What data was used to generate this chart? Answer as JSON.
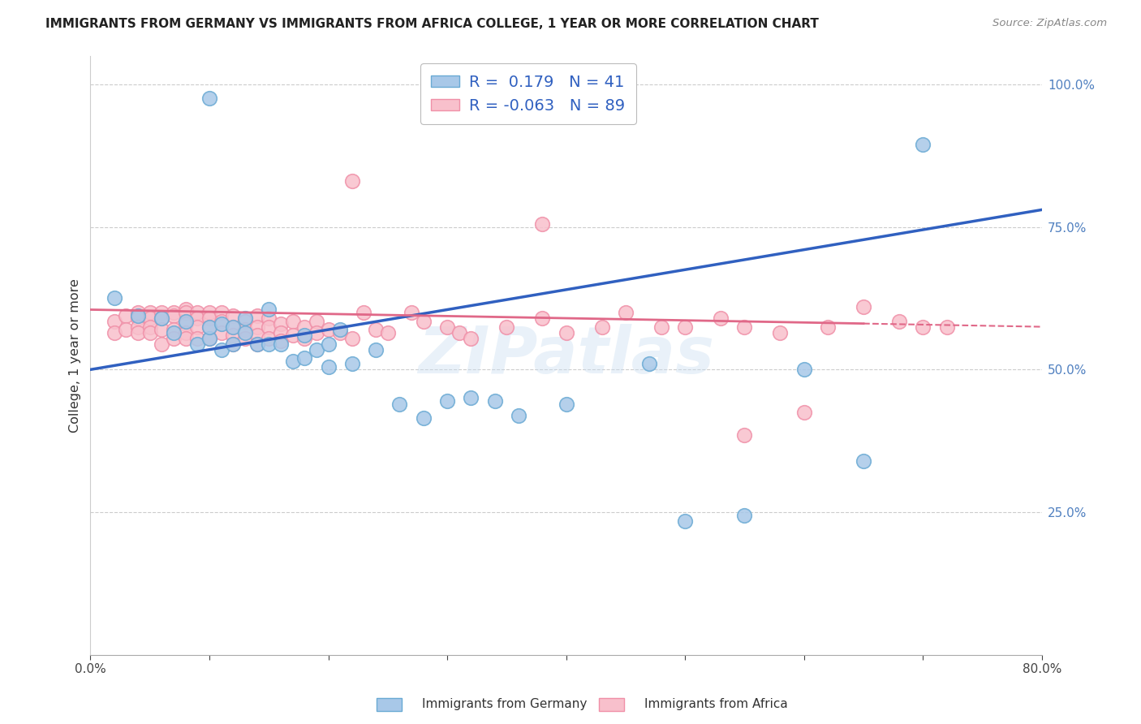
{
  "title": "IMMIGRANTS FROM GERMANY VS IMMIGRANTS FROM AFRICA COLLEGE, 1 YEAR OR MORE CORRELATION CHART",
  "source": "Source: ZipAtlas.com",
  "ylabel": "College, 1 year or more",
  "xlim": [
    0.0,
    0.8
  ],
  "ylim": [
    0.0,
    1.05
  ],
  "ytick_labels_right": [
    "100.0%",
    "75.0%",
    "50.0%",
    "25.0%"
  ],
  "ytick_vals_right": [
    1.0,
    0.75,
    0.5,
    0.25
  ],
  "legend_blue_r": "0.179",
  "legend_blue_n": "41",
  "legend_pink_r": "-0.063",
  "legend_pink_n": "89",
  "blue_color": "#a8c8e8",
  "blue_edge_color": "#6aaad4",
  "pink_color": "#f8c0cc",
  "pink_edge_color": "#f090a8",
  "blue_line_color": "#3060c0",
  "pink_line_color": "#e06888",
  "blue_line_start_y": 0.5,
  "blue_line_end_y": 0.78,
  "pink_line_start_y": 0.605,
  "pink_line_end_y": 0.575,
  "pink_line_dash_x": 0.65,
  "blue_scatter_x": [
    0.1,
    0.02,
    0.04,
    0.06,
    0.07,
    0.08,
    0.09,
    0.1,
    0.1,
    0.11,
    0.11,
    0.12,
    0.12,
    0.13,
    0.13,
    0.14,
    0.15,
    0.15,
    0.16,
    0.17,
    0.18,
    0.18,
    0.19,
    0.2,
    0.2,
    0.21,
    0.22,
    0.24,
    0.26,
    0.28,
    0.3,
    0.32,
    0.34,
    0.36,
    0.4,
    0.47,
    0.5,
    0.55,
    0.6,
    0.65,
    0.7
  ],
  "blue_scatter_y": [
    0.975,
    0.625,
    0.595,
    0.59,
    0.565,
    0.585,
    0.545,
    0.555,
    0.575,
    0.535,
    0.58,
    0.545,
    0.575,
    0.565,
    0.59,
    0.545,
    0.545,
    0.605,
    0.545,
    0.515,
    0.56,
    0.52,
    0.535,
    0.545,
    0.505,
    0.57,
    0.51,
    0.535,
    0.44,
    0.415,
    0.445,
    0.45,
    0.445,
    0.42,
    0.44,
    0.51,
    0.235,
    0.245,
    0.5,
    0.34,
    0.895
  ],
  "pink_scatter_x": [
    0.02,
    0.02,
    0.03,
    0.03,
    0.04,
    0.04,
    0.04,
    0.04,
    0.05,
    0.05,
    0.05,
    0.05,
    0.06,
    0.06,
    0.06,
    0.06,
    0.07,
    0.07,
    0.07,
    0.07,
    0.08,
    0.08,
    0.08,
    0.08,
    0.08,
    0.09,
    0.09,
    0.09,
    0.09,
    0.1,
    0.1,
    0.1,
    0.1,
    0.11,
    0.11,
    0.11,
    0.12,
    0.12,
    0.12,
    0.12,
    0.13,
    0.13,
    0.13,
    0.14,
    0.14,
    0.14,
    0.14,
    0.15,
    0.15,
    0.15,
    0.16,
    0.16,
    0.16,
    0.17,
    0.17,
    0.18,
    0.18,
    0.19,
    0.19,
    0.2,
    0.21,
    0.22,
    0.23,
    0.24,
    0.25,
    0.27,
    0.28,
    0.3,
    0.31,
    0.32,
    0.35,
    0.38,
    0.4,
    0.43,
    0.45,
    0.48,
    0.5,
    0.53,
    0.55,
    0.58,
    0.62,
    0.65,
    0.68,
    0.7,
    0.72,
    0.55,
    0.6,
    0.38,
    0.22
  ],
  "pink_scatter_y": [
    0.585,
    0.565,
    0.595,
    0.57,
    0.6,
    0.59,
    0.575,
    0.565,
    0.6,
    0.59,
    0.575,
    0.565,
    0.6,
    0.59,
    0.57,
    0.545,
    0.6,
    0.595,
    0.57,
    0.555,
    0.605,
    0.6,
    0.58,
    0.565,
    0.555,
    0.6,
    0.59,
    0.575,
    0.555,
    0.6,
    0.59,
    0.575,
    0.555,
    0.6,
    0.585,
    0.565,
    0.595,
    0.575,
    0.56,
    0.545,
    0.585,
    0.57,
    0.555,
    0.595,
    0.575,
    0.56,
    0.545,
    0.59,
    0.575,
    0.555,
    0.58,
    0.565,
    0.55,
    0.585,
    0.56,
    0.575,
    0.555,
    0.585,
    0.565,
    0.57,
    0.565,
    0.555,
    0.6,
    0.57,
    0.565,
    0.6,
    0.585,
    0.575,
    0.565,
    0.555,
    0.575,
    0.59,
    0.565,
    0.575,
    0.6,
    0.575,
    0.575,
    0.59,
    0.575,
    0.565,
    0.575,
    0.61,
    0.585,
    0.575,
    0.575,
    0.385,
    0.425,
    0.755,
    0.83
  ]
}
